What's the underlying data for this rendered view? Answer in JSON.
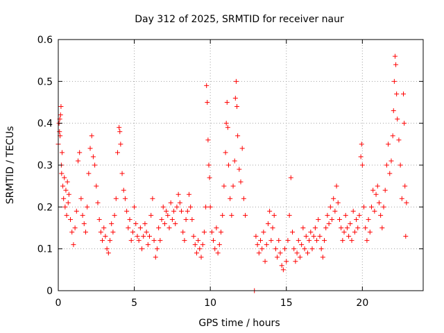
{
  "chart_data": {
    "type": "scatter",
    "title": "Day 312 of 2025, SRMTID for receiver naur",
    "xlabel": "GPS time / hours",
    "ylabel": "SRMTID / TECUs",
    "xlim": [
      0,
      24
    ],
    "ylim": [
      0,
      0.6
    ],
    "xticks": [
      0,
      5,
      10,
      15,
      20
    ],
    "xtick_labels": [
      "0",
      "5",
      "10",
      "15",
      "20"
    ],
    "yticks": [
      0,
      0.1,
      0.2,
      0.3,
      0.4,
      0.5,
      0.6
    ],
    "ytick_labels": [
      "0",
      "0.1",
      "0.2",
      "0.3",
      "0.4",
      "0.5",
      "0.6"
    ],
    "grid": true,
    "marker": "+",
    "marker_color": "#ff0000",
    "series": [
      {
        "name": "SRMTID",
        "points": [
          [
            0.0,
            0.35
          ],
          [
            0.05,
            0.4
          ],
          [
            0.08,
            0.38
          ],
          [
            0.1,
            0.41
          ],
          [
            0.12,
            0.37
          ],
          [
            0.15,
            0.42
          ],
          [
            0.18,
            0.44
          ],
          [
            0.2,
            0.3
          ],
          [
            0.22,
            0.28
          ],
          [
            0.25,
            0.33
          ],
          [
            0.3,
            0.25
          ],
          [
            0.35,
            0.22
          ],
          [
            0.4,
            0.27
          ],
          [
            0.45,
            0.2
          ],
          [
            0.5,
            0.24
          ],
          [
            0.55,
            0.18
          ],
          [
            0.6,
            0.26
          ],
          [
            0.65,
            0.21
          ],
          [
            0.7,
            0.23
          ],
          [
            0.8,
            0.17
          ],
          [
            0.9,
            0.14
          ],
          [
            1.0,
            0.11
          ],
          [
            1.1,
            0.15
          ],
          [
            1.2,
            0.19
          ],
          [
            1.3,
            0.31
          ],
          [
            1.4,
            0.33
          ],
          [
            1.5,
            0.22
          ],
          [
            1.6,
            0.18
          ],
          [
            1.7,
            0.16
          ],
          [
            1.8,
            0.14
          ],
          [
            1.9,
            0.2
          ],
          [
            2.0,
            0.28
          ],
          [
            2.1,
            0.34
          ],
          [
            2.2,
            0.37
          ],
          [
            2.3,
            0.32
          ],
          [
            2.4,
            0.3
          ],
          [
            2.5,
            0.25
          ],
          [
            2.6,
            0.21
          ],
          [
            2.7,
            0.17
          ],
          [
            2.8,
            0.14
          ],
          [
            2.9,
            0.12
          ],
          [
            3.0,
            0.15
          ],
          [
            3.1,
            0.13
          ],
          [
            3.2,
            0.1
          ],
          [
            3.3,
            0.09
          ],
          [
            3.4,
            0.12
          ],
          [
            3.5,
            0.16
          ],
          [
            3.6,
            0.14
          ],
          [
            3.7,
            0.18
          ],
          [
            3.8,
            0.22
          ],
          [
            3.9,
            0.33
          ],
          [
            4.0,
            0.39
          ],
          [
            4.05,
            0.38
          ],
          [
            4.1,
            0.35
          ],
          [
            4.2,
            0.28
          ],
          [
            4.3,
            0.24
          ],
          [
            4.4,
            0.22
          ],
          [
            4.5,
            0.19
          ],
          [
            4.6,
            0.15
          ],
          [
            4.7,
            0.17
          ],
          [
            4.8,
            0.12
          ],
          [
            4.9,
            0.14
          ],
          [
            5.0,
            0.2
          ],
          [
            5.1,
            0.16
          ],
          [
            5.2,
            0.13
          ],
          [
            5.3,
            0.12
          ],
          [
            5.4,
            0.15
          ],
          [
            5.5,
            0.1
          ],
          [
            5.6,
            0.13
          ],
          [
            5.7,
            0.16
          ],
          [
            5.8,
            0.14
          ],
          [
            5.9,
            0.11
          ],
          [
            6.0,
            0.13
          ],
          [
            6.1,
            0.18
          ],
          [
            6.2,
            0.22
          ],
          [
            6.3,
            0.12
          ],
          [
            6.4,
            0.08
          ],
          [
            6.5,
            0.1
          ],
          [
            6.6,
            0.15
          ],
          [
            6.7,
            0.12
          ],
          [
            6.8,
            0.17
          ],
          [
            6.9,
            0.2
          ],
          [
            7.0,
            0.16
          ],
          [
            7.1,
            0.19
          ],
          [
            7.2,
            0.18
          ],
          [
            7.3,
            0.15
          ],
          [
            7.4,
            0.21
          ],
          [
            7.5,
            0.17
          ],
          [
            7.6,
            0.19
          ],
          [
            7.7,
            0.16
          ],
          [
            7.8,
            0.2
          ],
          [
            7.9,
            0.23
          ],
          [
            8.0,
            0.21
          ],
          [
            8.1,
            0.19
          ],
          [
            8.2,
            0.14
          ],
          [
            8.3,
            0.12
          ],
          [
            8.4,
            0.17
          ],
          [
            8.5,
            0.19
          ],
          [
            8.6,
            0.23
          ],
          [
            8.7,
            0.2
          ],
          [
            8.8,
            0.17
          ],
          [
            8.9,
            0.13
          ],
          [
            9.0,
            0.11
          ],
          [
            9.1,
            0.09
          ],
          [
            9.2,
            0.12
          ],
          [
            9.3,
            0.1
          ],
          [
            9.4,
            0.08
          ],
          [
            9.5,
            0.11
          ],
          [
            9.6,
            0.14
          ],
          [
            9.7,
            0.2
          ],
          [
            9.75,
            0.49
          ],
          [
            9.8,
            0.45
          ],
          [
            9.85,
            0.36
          ],
          [
            9.9,
            0.3
          ],
          [
            9.95,
            0.27
          ],
          [
            10.0,
            0.2
          ],
          [
            10.1,
            0.14
          ],
          [
            10.2,
            0.12
          ],
          [
            10.3,
            0.1
          ],
          [
            10.4,
            0.15
          ],
          [
            10.5,
            0.09
          ],
          [
            10.6,
            0.11
          ],
          [
            10.7,
            0.14
          ],
          [
            10.8,
            0.18
          ],
          [
            10.9,
            0.25
          ],
          [
            11.0,
            0.33
          ],
          [
            11.05,
            0.4
          ],
          [
            11.1,
            0.45
          ],
          [
            11.15,
            0.39
          ],
          [
            11.2,
            0.3
          ],
          [
            11.3,
            0.22
          ],
          [
            11.4,
            0.18
          ],
          [
            11.5,
            0.25
          ],
          [
            11.6,
            0.31
          ],
          [
            11.65,
            0.46
          ],
          [
            11.7,
            0.5
          ],
          [
            11.75,
            0.44
          ],
          [
            11.8,
            0.37
          ],
          [
            11.9,
            0.29
          ],
          [
            12.0,
            0.26
          ],
          [
            12.1,
            0.34
          ],
          [
            12.2,
            0.22
          ],
          [
            12.3,
            0.18
          ],
          [
            12.9,
            0.0
          ],
          [
            13.0,
            0.13
          ],
          [
            13.1,
            0.11
          ],
          [
            13.2,
            0.09
          ],
          [
            13.3,
            0.12
          ],
          [
            13.4,
            0.1
          ],
          [
            13.5,
            0.14
          ],
          [
            13.6,
            0.07
          ],
          [
            13.7,
            0.11
          ],
          [
            13.8,
            0.16
          ],
          [
            13.9,
            0.19
          ],
          [
            14.0,
            0.12
          ],
          [
            14.1,
            0.15
          ],
          [
            14.2,
            0.18
          ],
          [
            14.3,
            0.1
          ],
          [
            14.4,
            0.08
          ],
          [
            14.5,
            0.12
          ],
          [
            14.6,
            0.09
          ],
          [
            14.7,
            0.06
          ],
          [
            14.8,
            0.05
          ],
          [
            14.9,
            0.1
          ],
          [
            15.0,
            0.07
          ],
          [
            15.1,
            0.12
          ],
          [
            15.2,
            0.18
          ],
          [
            15.3,
            0.27
          ],
          [
            15.4,
            0.14
          ],
          [
            15.5,
            0.1
          ],
          [
            15.6,
            0.07
          ],
          [
            15.7,
            0.09
          ],
          [
            15.8,
            0.12
          ],
          [
            15.9,
            0.08
          ],
          [
            16.0,
            0.11
          ],
          [
            16.1,
            0.15
          ],
          [
            16.2,
            0.1
          ],
          [
            16.3,
            0.13
          ],
          [
            16.4,
            0.09
          ],
          [
            16.5,
            0.12
          ],
          [
            16.6,
            0.14
          ],
          [
            16.7,
            0.1
          ],
          [
            16.8,
            0.13
          ],
          [
            16.9,
            0.15
          ],
          [
            17.0,
            0.12
          ],
          [
            17.1,
            0.17
          ],
          [
            17.2,
            0.13
          ],
          [
            17.3,
            0.1
          ],
          [
            17.4,
            0.08
          ],
          [
            17.5,
            0.12
          ],
          [
            17.6,
            0.15
          ],
          [
            17.7,
            0.18
          ],
          [
            17.8,
            0.16
          ],
          [
            17.9,
            0.2
          ],
          [
            18.0,
            0.17
          ],
          [
            18.1,
            0.22
          ],
          [
            18.2,
            0.19
          ],
          [
            18.3,
            0.25
          ],
          [
            18.4,
            0.21
          ],
          [
            18.5,
            0.17
          ],
          [
            18.6,
            0.15
          ],
          [
            18.7,
            0.12
          ],
          [
            18.8,
            0.14
          ],
          [
            18.9,
            0.18
          ],
          [
            19.0,
            0.15
          ],
          [
            19.1,
            0.13
          ],
          [
            19.2,
            0.16
          ],
          [
            19.3,
            0.12
          ],
          [
            19.4,
            0.19
          ],
          [
            19.5,
            0.14
          ],
          [
            19.6,
            0.17
          ],
          [
            19.7,
            0.15
          ],
          [
            19.8,
            0.18
          ],
          [
            19.9,
            0.32
          ],
          [
            19.95,
            0.35
          ],
          [
            20.0,
            0.3
          ],
          [
            20.1,
            0.2
          ],
          [
            20.2,
            0.15
          ],
          [
            20.3,
            0.12
          ],
          [
            20.4,
            0.17
          ],
          [
            20.5,
            0.14
          ],
          [
            20.6,
            0.2
          ],
          [
            20.7,
            0.24
          ],
          [
            20.8,
            0.19
          ],
          [
            20.9,
            0.23
          ],
          [
            21.0,
            0.25
          ],
          [
            21.1,
            0.21
          ],
          [
            21.2,
            0.18
          ],
          [
            21.3,
            0.15
          ],
          [
            21.4,
            0.2
          ],
          [
            21.5,
            0.24
          ],
          [
            21.6,
            0.3
          ],
          [
            21.7,
            0.35
          ],
          [
            21.8,
            0.28
          ],
          [
            21.9,
            0.31
          ],
          [
            22.0,
            0.37
          ],
          [
            22.05,
            0.43
          ],
          [
            22.1,
            0.5
          ],
          [
            22.15,
            0.56
          ],
          [
            22.2,
            0.54
          ],
          [
            22.25,
            0.47
          ],
          [
            22.3,
            0.41
          ],
          [
            22.4,
            0.36
          ],
          [
            22.5,
            0.3
          ],
          [
            22.6,
            0.22
          ],
          [
            22.7,
            0.47
          ],
          [
            22.75,
            0.4
          ],
          [
            22.8,
            0.25
          ],
          [
            22.85,
            0.13
          ],
          [
            22.9,
            0.21
          ]
        ]
      }
    ]
  }
}
